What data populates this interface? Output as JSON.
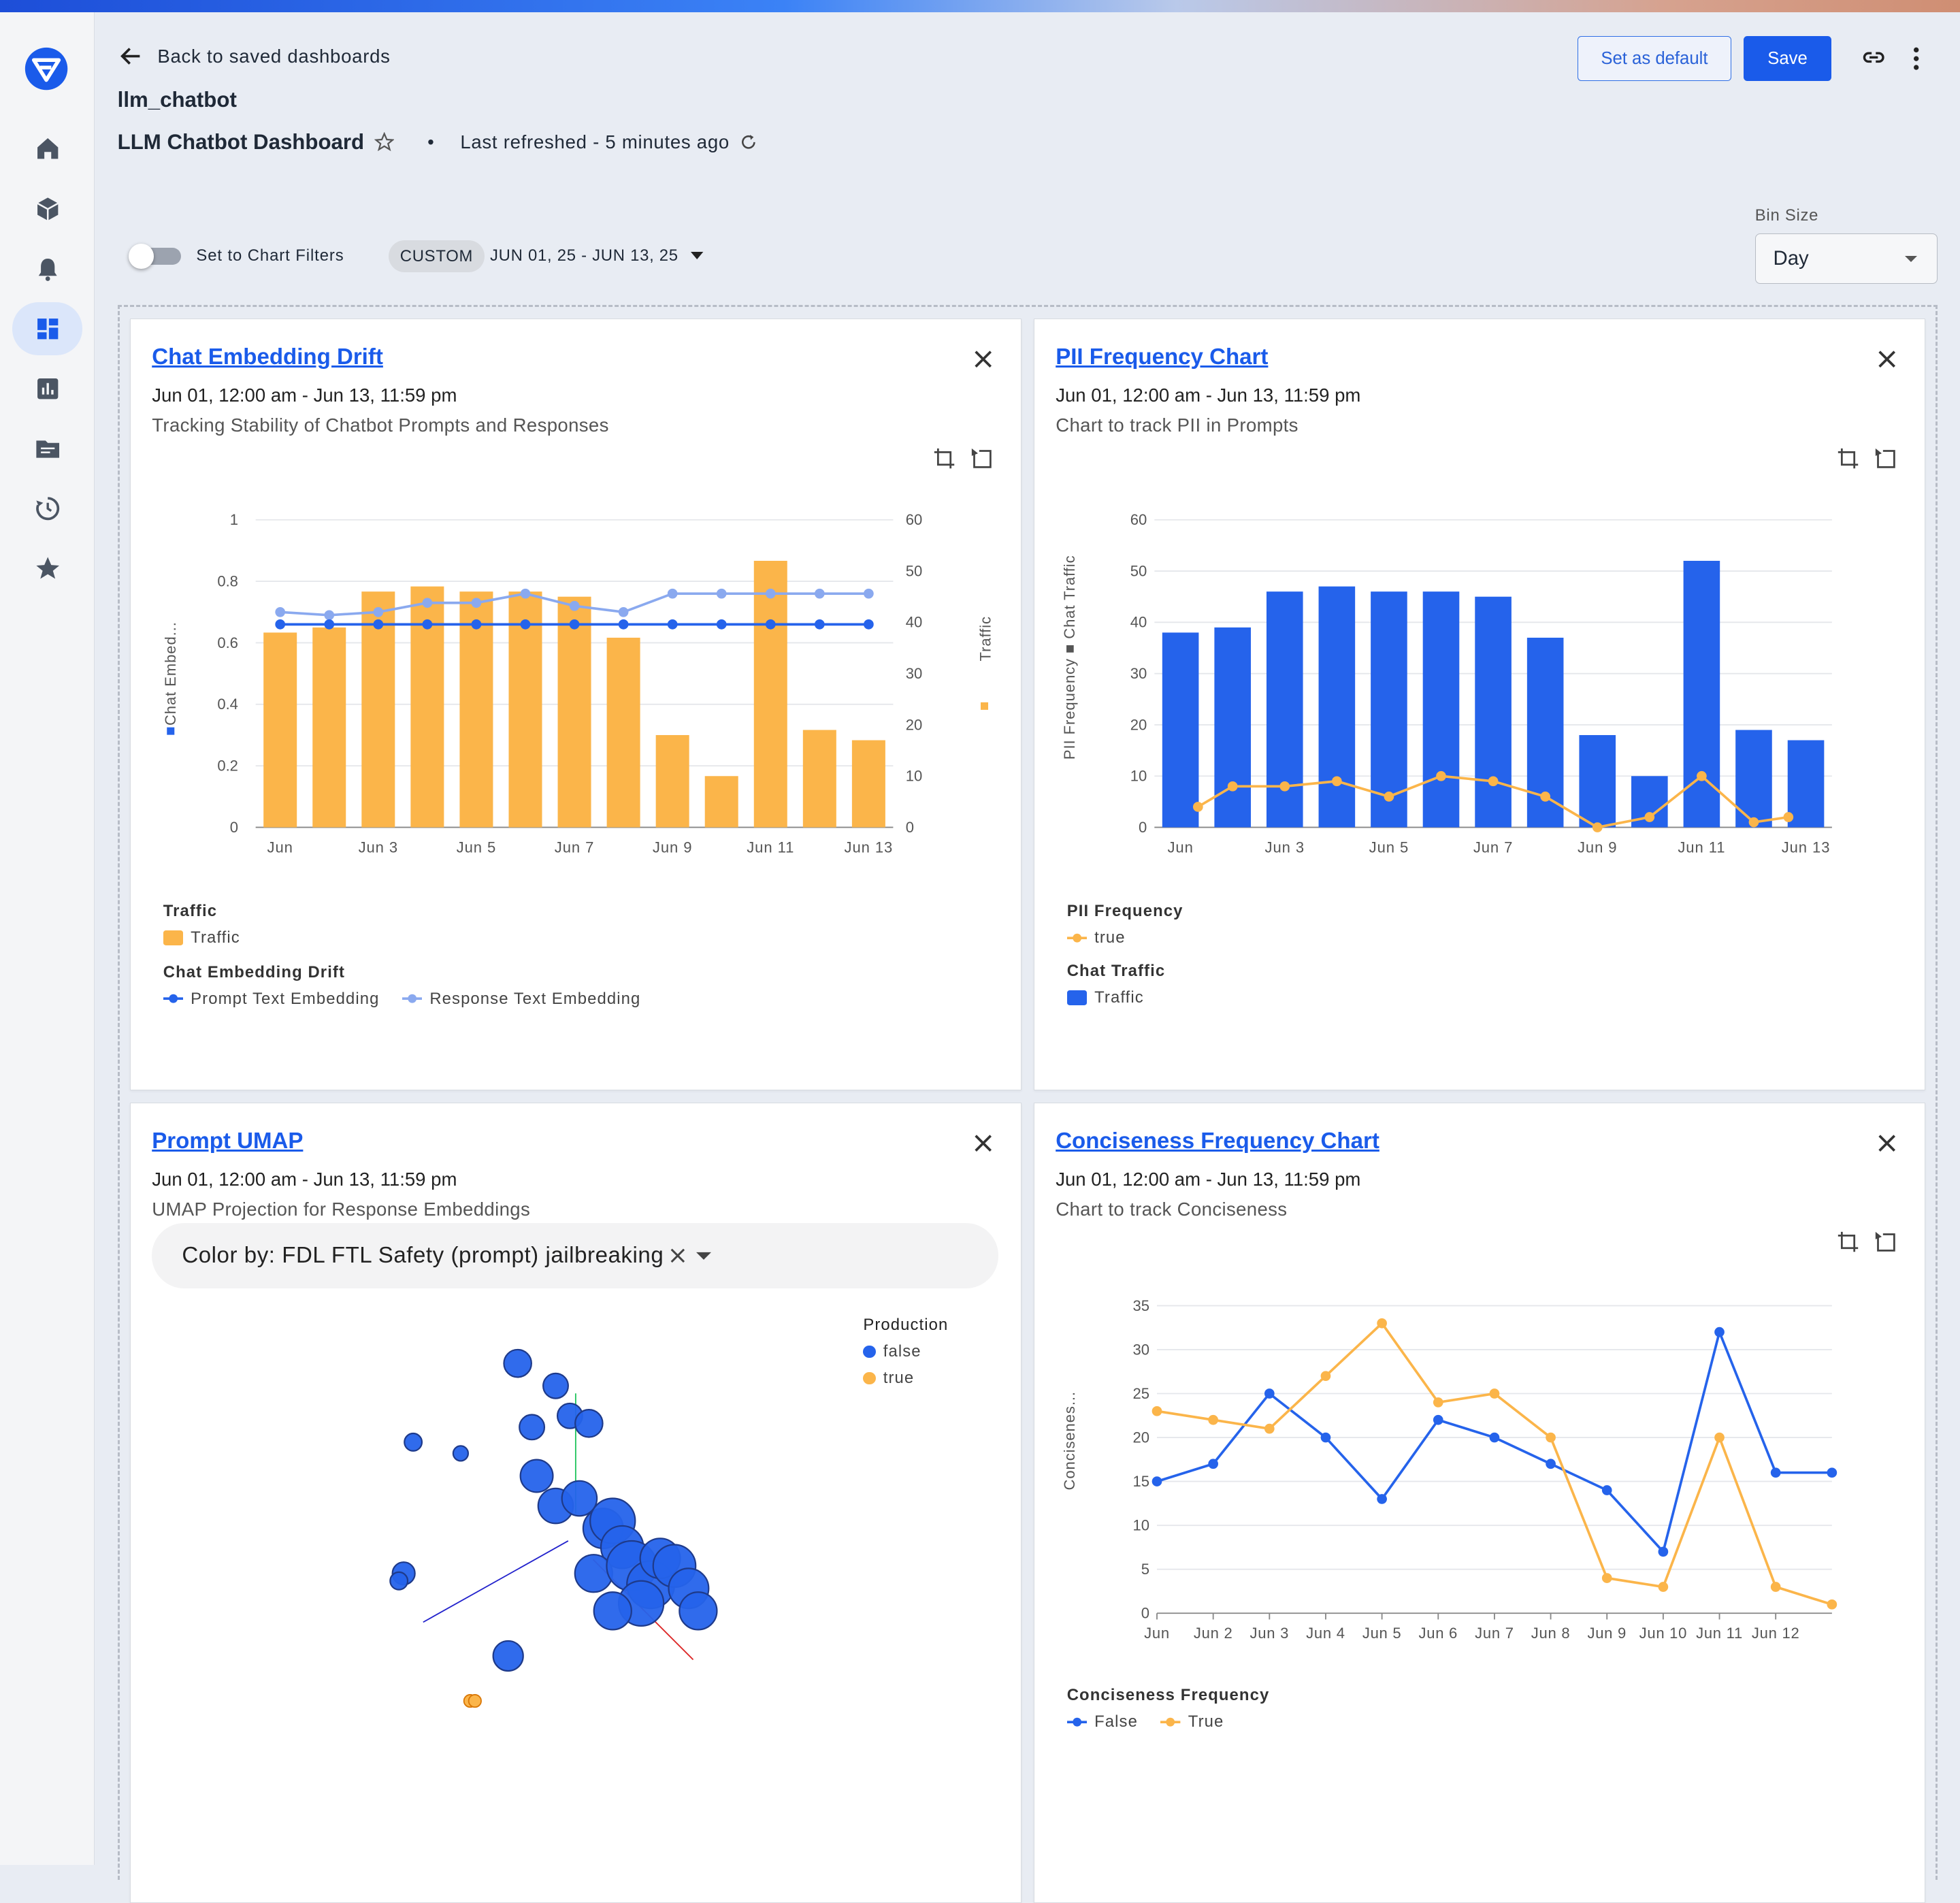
{
  "header": {
    "back_label": "Back to saved dashboards",
    "project": "llm_chatbot",
    "dashboard_title": "LLM Chatbot Dashboard",
    "refreshed": "Last refreshed - 5 minutes ago",
    "set_default_label": "Set as default",
    "save_label": "Save"
  },
  "sidebar": {
    "items": [
      {
        "name": "home",
        "icon": "home-icon"
      },
      {
        "name": "models",
        "icon": "cube-icon"
      },
      {
        "name": "alerts",
        "icon": "bell-icon"
      },
      {
        "name": "dashboards",
        "icon": "dashboard-icon",
        "active": true
      },
      {
        "name": "charts",
        "icon": "bar-chart-icon"
      },
      {
        "name": "datasets",
        "icon": "folder-icon"
      },
      {
        "name": "history",
        "icon": "history-icon"
      },
      {
        "name": "favorites",
        "icon": "star-icon"
      }
    ]
  },
  "filters": {
    "toggle_label": "Set to Chart Filters",
    "toggle_on": false,
    "chip": "CUSTOM",
    "date_range": "JUN 01, 25 - JUN 13, 25",
    "bin_label": "Bin Size",
    "bin_value": "Day"
  },
  "colors": {
    "accent": "#1a5bea",
    "orange": "#fbb54a",
    "blue": "#2563eb",
    "light_blue": "#8aa9ef"
  },
  "cards": {
    "drift": {
      "title": "Chat Embedding Drift",
      "date": "Jun 01, 12:00 am - Jun 13, 11:59 pm",
      "desc": "Tracking Stability of Chatbot Prompts and Responses",
      "legend_traffic_title": "Traffic",
      "legend_traffic": "Traffic",
      "legend_drift_title": "Chat Embedding Drift",
      "legend_prompt": "Prompt Text Embedding",
      "legend_response": "Response Text Embedding"
    },
    "pii": {
      "title": "PII Frequency Chart",
      "date": "Jun 01, 12:00 am - Jun 13, 11:59 pm",
      "desc": "Chart to track PII in Prompts",
      "legend_pii_title": "PII Frequency",
      "legend_true": "true",
      "legend_traffic_title": "Chat Traffic",
      "legend_traffic": "Traffic"
    },
    "umap": {
      "title": "Prompt UMAP",
      "date": "Jun 01, 12:00 am - Jun 13, 11:59 pm",
      "desc": "UMAP Projection for Response Embeddings",
      "color_by": "Color by: FDL FTL Safety (prompt) jailbreaking",
      "legend_title": "Production",
      "legend_false": "false",
      "legend_true": "true"
    },
    "concise": {
      "title": "Conciseness Frequency Chart",
      "date": "Jun 01, 12:00 am - Jun 13, 11:59 pm",
      "desc": "Chart to track Conciseness",
      "legend_title": "Conciseness Frequency",
      "legend_false": "False",
      "legend_true": "True"
    }
  },
  "chart_data": [
    {
      "type": "bar",
      "title": "Chat Embedding Drift",
      "x_tick_labels": [
        "Jun",
        "Jun 3",
        "Jun 5",
        "Jun 7",
        "Jun 9",
        "Jun 11",
        "Jun 13"
      ],
      "x": [
        1,
        2,
        3,
        4,
        5,
        6,
        7,
        8,
        9,
        10,
        11,
        12,
        13
      ],
      "ylabel_left": "Chat Embed...",
      "ylabel_right": "Traffic",
      "ylim_left": [
        0,
        1
      ],
      "ylim_right": [
        0,
        60
      ],
      "y_ticks_left": [
        "0",
        "0.2",
        "0.4",
        "0.6",
        "0.8",
        "1"
      ],
      "y_ticks_right": [
        "0",
        "10",
        "20",
        "30",
        "40",
        "50",
        "60"
      ],
      "series": [
        {
          "name": "Traffic",
          "kind": "bar",
          "axis": "right",
          "values": [
            38,
            39,
            46,
            47,
            46,
            46,
            45,
            37,
            18,
            10,
            52,
            19,
            17
          ]
        },
        {
          "name": "Prompt Text Embedding",
          "kind": "line",
          "axis": "left",
          "values": [
            0.66,
            0.66,
            0.66,
            0.66,
            0.66,
            0.66,
            0.66,
            0.66,
            0.66,
            0.66,
            0.66,
            0.66,
            0.66
          ]
        },
        {
          "name": "Response Text Embedding",
          "kind": "line",
          "axis": "left",
          "values": [
            0.7,
            0.69,
            0.7,
            0.73,
            0.73,
            0.76,
            0.72,
            0.7,
            0.76,
            0.76,
            0.76,
            0.76,
            0.76
          ]
        }
      ]
    },
    {
      "type": "bar",
      "title": "PII Frequency Chart",
      "x_tick_labels": [
        "Jun",
        "Jun 3",
        "Jun 5",
        "Jun 7",
        "Jun 9",
        "Jun 11",
        "Jun 13"
      ],
      "x": [
        1,
        2,
        3,
        4,
        5,
        6,
        7,
        8,
        9,
        10,
        11,
        12,
        13
      ],
      "ylabel": "PII Frequency ■ Chat Traffic",
      "ylim": [
        0,
        60
      ],
      "y_ticks": [
        "0",
        "10",
        "20",
        "30",
        "40",
        "50",
        "60"
      ],
      "series": [
        {
          "name": "Traffic",
          "kind": "bar",
          "values": [
            38,
            39,
            46,
            47,
            46,
            46,
            45,
            37,
            18,
            10,
            52,
            19,
            17
          ]
        },
        {
          "name": "true",
          "kind": "line",
          "values": [
            4,
            8,
            8,
            9,
            6,
            10,
            9,
            6,
            0,
            2,
            10,
            1,
            2
          ]
        }
      ]
    },
    {
      "type": "scatter",
      "title": "Prompt UMAP",
      "legend_title": "Production",
      "series": [
        {
          "name": "false",
          "points": [
            [
              0.42,
              0.06
            ],
            [
              0.5,
              0.12
            ],
            [
              0.45,
              0.23
            ],
            [
              0.53,
              0.2
            ],
            [
              0.57,
              0.22
            ],
            [
              0.2,
              0.27
            ],
            [
              0.3,
              0.3
            ],
            [
              0.46,
              0.36
            ],
            [
              0.5,
              0.44
            ],
            [
              0.55,
              0.42
            ],
            [
              0.6,
              0.5
            ],
            [
              0.62,
              0.48
            ],
            [
              0.64,
              0.55
            ],
            [
              0.58,
              0.62
            ],
            [
              0.66,
              0.6
            ],
            [
              0.7,
              0.65
            ],
            [
              0.72,
              0.58
            ],
            [
              0.68,
              0.7
            ],
            [
              0.75,
              0.6
            ],
            [
              0.78,
              0.66
            ],
            [
              0.8,
              0.72
            ],
            [
              0.62,
              0.72
            ],
            [
              0.4,
              0.84
            ],
            [
              0.18,
              0.62
            ],
            [
              0.17,
              0.64
            ]
          ]
        },
        {
          "name": "true",
          "points": [
            [
              0.32,
              0.96
            ],
            [
              0.33,
              0.96
            ]
          ]
        }
      ]
    },
    {
      "type": "line",
      "title": "Conciseness Frequency Chart",
      "x_tick_labels": [
        "Jun",
        "Jun 2",
        "Jun 3",
        "Jun 4",
        "Jun 5",
        "Jun 6",
        "Jun 7",
        "Jun 8",
        "Jun 9",
        "Jun 10",
        "Jun 11",
        "Jun 12"
      ],
      "ylabel": "Concisenes...",
      "ylim": [
        0,
        35
      ],
      "y_ticks": [
        "0",
        "5",
        "10",
        "15",
        "20",
        "25",
        "30",
        "35"
      ],
      "series": [
        {
          "name": "False",
          "values": [
            15,
            17,
            25,
            20,
            13,
            22,
            20,
            17,
            14,
            7,
            32,
            16,
            16
          ]
        },
        {
          "name": "True",
          "values": [
            23,
            22,
            21,
            27,
            33,
            24,
            25,
            20,
            4,
            3,
            20,
            3,
            1
          ]
        }
      ]
    }
  ]
}
